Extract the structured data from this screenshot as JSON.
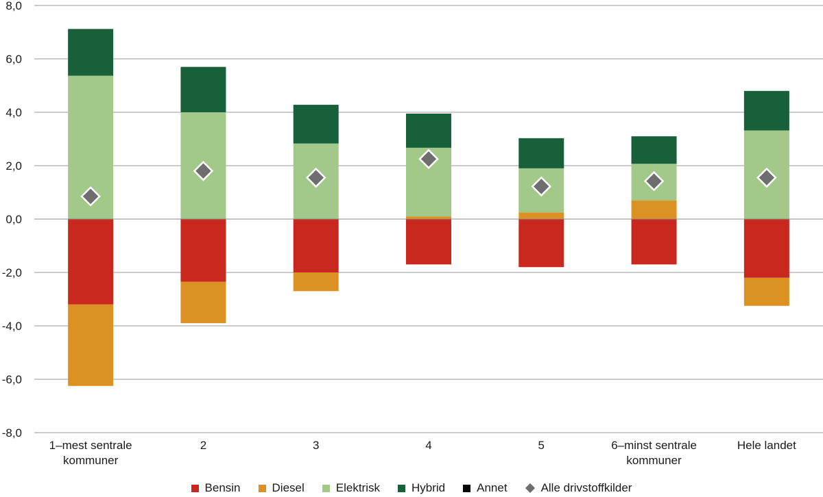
{
  "chart_data": {
    "type": "bar",
    "stacked": true,
    "categories": [
      "1–mest sentrale kommuner",
      "2",
      "3",
      "4",
      "5",
      "6–minst sentrale kommuner",
      "Hele landet"
    ],
    "series": [
      {
        "name": "Bensin",
        "color": "#c8281e",
        "values": [
          -3.2,
          -2.35,
          -2.0,
          -1.7,
          -1.8,
          -1.7,
          -2.2
        ]
      },
      {
        "name": "Diesel",
        "color": "#dc9222",
        "values": [
          -3.05,
          -1.55,
          -0.7,
          0.1,
          0.25,
          0.7,
          -1.05
        ]
      },
      {
        "name": "Elektrisk",
        "color": "#a2c98a",
        "values": [
          5.37,
          4.0,
          2.83,
          2.57,
          1.65,
          1.37,
          3.32
        ]
      },
      {
        "name": "Hybrid",
        "color": "#18603a",
        "values": [
          1.75,
          1.7,
          1.45,
          1.28,
          1.13,
          1.03,
          1.48
        ]
      },
      {
        "name": "Annet",
        "color": "#000000",
        "values": [
          0,
          0,
          0,
          0,
          0,
          0,
          0
        ]
      }
    ],
    "total_series": {
      "name": "Alle drivstoffkilder",
      "color": "#6e6e6e",
      "marker": "diamond",
      "values": [
        0.85,
        1.8,
        1.55,
        2.25,
        1.22,
        1.42,
        1.55
      ]
    },
    "ylim": [
      -8,
      8
    ],
    "yticks": [
      "8,0",
      "6,0",
      "4,0",
      "2,0",
      "0,0",
      "-2,0",
      "-4,0",
      "-6,0",
      "-8,0"
    ],
    "ytick_values": [
      8,
      6,
      4,
      2,
      0,
      -2,
      -4,
      -6,
      -8
    ],
    "title": "",
    "xlabel": "",
    "ylabel": "",
    "grid": "horizontal",
    "legend_position": "bottom"
  }
}
